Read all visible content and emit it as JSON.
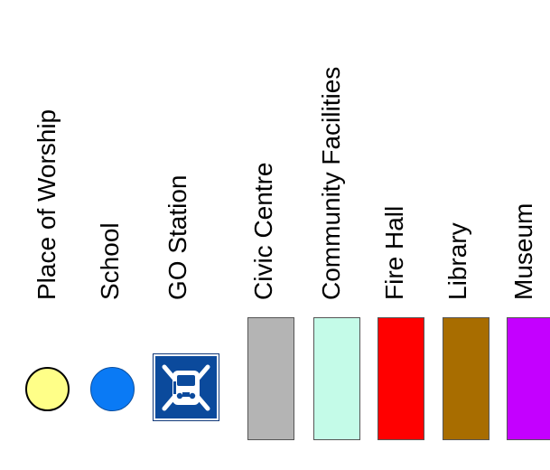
{
  "legend": {
    "items": [
      {
        "label": "Place of Worship",
        "symbol": "circle",
        "color": "#ffff88"
      },
      {
        "label": "School",
        "symbol": "circle",
        "color": "#0a7af5"
      },
      {
        "label": "GO Station",
        "symbol": "train-icon",
        "color": "#0b4a9c"
      },
      {
        "label": "Civic Centre",
        "symbol": "rect",
        "color": "#b4b4b4"
      },
      {
        "label": "Community Facilities",
        "symbol": "rect",
        "color": "#c4fbe8"
      },
      {
        "label": "Fire Hall",
        "symbol": "rect",
        "color": "#ff0000"
      },
      {
        "label": "Library",
        "symbol": "rect",
        "color": "#a86d00"
      },
      {
        "label": "Museum",
        "symbol": "rect",
        "color": "#c400ff"
      }
    ]
  }
}
